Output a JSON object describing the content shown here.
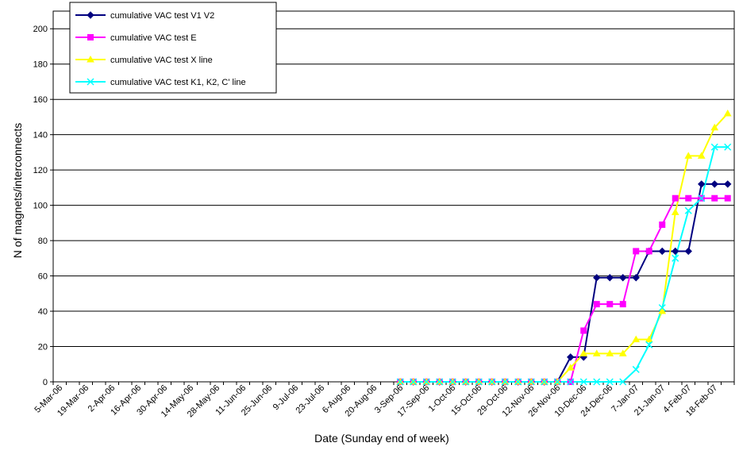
{
  "chart_data": {
    "type": "line",
    "title": "",
    "xlabel": "Date (Sunday end of week)",
    "ylabel": "N of magnets/interconnects",
    "ylim": [
      0,
      210
    ],
    "yticks": [
      0,
      20,
      40,
      60,
      80,
      100,
      120,
      140,
      160,
      180,
      200
    ],
    "grid": "horizontal",
    "legend_position": "top-left",
    "x": [
      "5-Mar-06",
      "12-Mar-06",
      "19-Mar-06",
      "26-Mar-06",
      "2-Apr-06",
      "9-Apr-06",
      "16-Apr-06",
      "23-Apr-06",
      "30-Apr-06",
      "7-May-06",
      "14-May-06",
      "21-May-06",
      "28-May-06",
      "4-Jun-06",
      "11-Jun-06",
      "18-Jun-06",
      "25-Jun-06",
      "2-Jul-06",
      "9-Jul-06",
      "16-Jul-06",
      "23-Jul-06",
      "30-Jul-06",
      "6-Aug-06",
      "13-Aug-06",
      "20-Aug-06",
      "27-Aug-06",
      "3-Sep-06",
      "10-Sep-06",
      "17-Sep-06",
      "24-Sep-06",
      "1-Oct-06",
      "8-Oct-06",
      "15-Oct-06",
      "22-Oct-06",
      "29-Oct-06",
      "5-Nov-06",
      "12-Nov-06",
      "19-Nov-06",
      "26-Nov-06",
      "3-Dec-06",
      "10-Dec-06",
      "17-Dec-06",
      "24-Dec-06",
      "31-Dec-06",
      "7-Jan-07",
      "14-Jan-07",
      "21-Jan-07",
      "28-Jan-07",
      "4-Feb-07",
      "11-Feb-07",
      "18-Feb-07",
      "25-Feb-07"
    ],
    "x_tick_labels": [
      "5-Mar-06",
      "19-Mar-06",
      "2-Apr-06",
      "16-Apr-06",
      "30-Apr-06",
      "14-May-06",
      "28-May-06",
      "11-Jun-06",
      "25-Jun-06",
      "9-Jul-06",
      "23-Jul-06",
      "6-Aug-06",
      "20-Aug-06",
      "3-Sep-06",
      "17-Sep-06",
      "1-Oct-06",
      "15-Oct-06",
      "29-Oct-06",
      "12-Nov-06",
      "26-Nov-06",
      "10-Dec-06",
      "24-Dec-06",
      "7-Jan-07",
      "21-Jan-07",
      "4-Feb-07",
      "18-Feb-07"
    ],
    "series": [
      {
        "name": "cumulative VAC test V1 V2",
        "color": "#000080",
        "marker": "diamond",
        "x": [
          "3-Sep-06",
          "10-Sep-06",
          "17-Sep-06",
          "24-Sep-06",
          "1-Oct-06",
          "8-Oct-06",
          "15-Oct-06",
          "22-Oct-06",
          "29-Oct-06",
          "5-Nov-06",
          "12-Nov-06",
          "19-Nov-06",
          "26-Nov-06",
          "3-Dec-06",
          "10-Dec-06",
          "17-Dec-06",
          "24-Dec-06",
          "31-Dec-06",
          "7-Jan-07",
          "14-Jan-07",
          "21-Jan-07",
          "28-Jan-07",
          "4-Feb-07",
          "11-Feb-07",
          "18-Feb-07",
          "25-Feb-07"
        ],
        "y": [
          0,
          0,
          0,
          0,
          0,
          0,
          0,
          0,
          0,
          0,
          0,
          0,
          0,
          14,
          14,
          59,
          59,
          59,
          59,
          74,
          74,
          74,
          74,
          112,
          112,
          112
        ]
      },
      {
        "name": "cumulative VAC test E",
        "color": "#ff00ff",
        "marker": "square",
        "x": [
          "3-Sep-06",
          "10-Sep-06",
          "17-Sep-06",
          "24-Sep-06",
          "1-Oct-06",
          "8-Oct-06",
          "15-Oct-06",
          "22-Oct-06",
          "29-Oct-06",
          "5-Nov-06",
          "12-Nov-06",
          "19-Nov-06",
          "26-Nov-06",
          "3-Dec-06",
          "10-Dec-06",
          "17-Dec-06",
          "24-Dec-06",
          "31-Dec-06",
          "7-Jan-07",
          "14-Jan-07",
          "21-Jan-07",
          "28-Jan-07",
          "4-Feb-07",
          "11-Feb-07",
          "18-Feb-07",
          "25-Feb-07"
        ],
        "y": [
          0,
          0,
          0,
          0,
          0,
          0,
          0,
          0,
          0,
          0,
          0,
          0,
          0,
          0,
          29,
          44,
          44,
          44,
          74,
          74,
          89,
          104,
          104,
          104,
          104,
          104
        ]
      },
      {
        "name": "cumulative VAC test X line",
        "color": "#ffff00",
        "marker": "triangle",
        "x": [
          "3-Sep-06",
          "10-Sep-06",
          "17-Sep-06",
          "24-Sep-06",
          "1-Oct-06",
          "8-Oct-06",
          "15-Oct-06",
          "22-Oct-06",
          "29-Oct-06",
          "5-Nov-06",
          "12-Nov-06",
          "19-Nov-06",
          "26-Nov-06",
          "3-Dec-06",
          "10-Dec-06",
          "17-Dec-06",
          "24-Dec-06",
          "31-Dec-06",
          "7-Jan-07",
          "14-Jan-07",
          "21-Jan-07",
          "28-Jan-07",
          "4-Feb-07",
          "11-Feb-07",
          "18-Feb-07",
          "25-Feb-07"
        ],
        "y": [
          0,
          0,
          0,
          0,
          0,
          0,
          0,
          0,
          0,
          0,
          0,
          0,
          0,
          8,
          16,
          16,
          16,
          16,
          24,
          24,
          40,
          96,
          128,
          128,
          144,
          152
        ]
      },
      {
        "name": "cumulative VAC test K1, K2, C' line",
        "color": "#00ffff",
        "marker": "x",
        "x": [
          "3-Sep-06",
          "10-Sep-06",
          "17-Sep-06",
          "24-Sep-06",
          "1-Oct-06",
          "8-Oct-06",
          "15-Oct-06",
          "22-Oct-06",
          "29-Oct-06",
          "5-Nov-06",
          "12-Nov-06",
          "19-Nov-06",
          "26-Nov-06",
          "3-Dec-06",
          "10-Dec-06",
          "17-Dec-06",
          "24-Dec-06",
          "31-Dec-06",
          "7-Jan-07",
          "14-Jan-07",
          "21-Jan-07",
          "28-Jan-07",
          "4-Feb-07",
          "11-Feb-07",
          "18-Feb-07",
          "25-Feb-07"
        ],
        "y": [
          0,
          0,
          0,
          0,
          0,
          0,
          0,
          0,
          0,
          0,
          0,
          0,
          0,
          0,
          0,
          0,
          0,
          0,
          7,
          21,
          42,
          70,
          97,
          104,
          133,
          133
        ]
      }
    ]
  }
}
